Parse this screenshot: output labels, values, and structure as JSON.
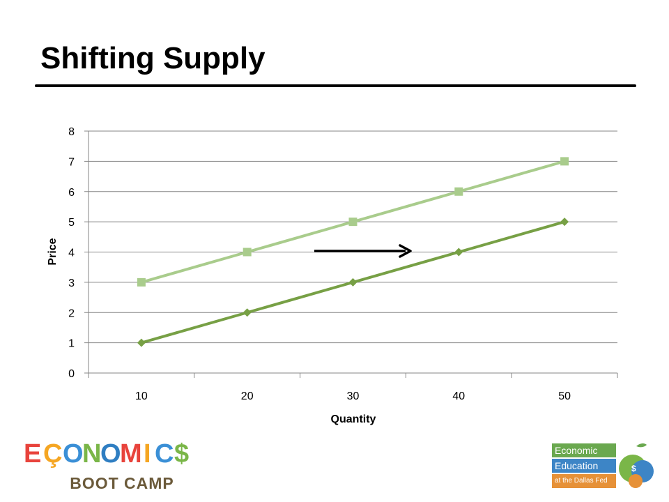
{
  "slide": {
    "title": "Shifting Supply"
  },
  "chart_data": {
    "type": "line",
    "xlabel": "Quantity",
    "ylabel": "Price",
    "categories": [
      10,
      20,
      30,
      40,
      50
    ],
    "ylim": [
      0,
      8
    ],
    "yticks": [
      0,
      1,
      2,
      3,
      4,
      5,
      6,
      7,
      8
    ],
    "grid": true,
    "legend": "none",
    "series": [
      {
        "values": [
          3,
          4,
          5,
          6,
          7
        ],
        "marker": "square",
        "color": "#a9cc8c"
      },
      {
        "values": [
          1,
          2,
          3,
          4,
          5
        ],
        "marker": "diamond",
        "color": "#77a045"
      }
    ],
    "annotations": [
      {
        "type": "arrow",
        "direction": "right"
      }
    ]
  },
  "logos": {
    "bootcamp": {
      "letters": [
        "E",
        "Ç",
        "O",
        "N",
        "O",
        "M",
        "I",
        "C",
        "$"
      ],
      "word": "BOOT CAMP"
    },
    "dallasfed": {
      "line1": "Economic",
      "line2": "Education",
      "line3": "at the Dallas Fed"
    }
  },
  "colors": {
    "gridline": "#868686",
    "axis": "#868686",
    "arrow": "#000000"
  }
}
